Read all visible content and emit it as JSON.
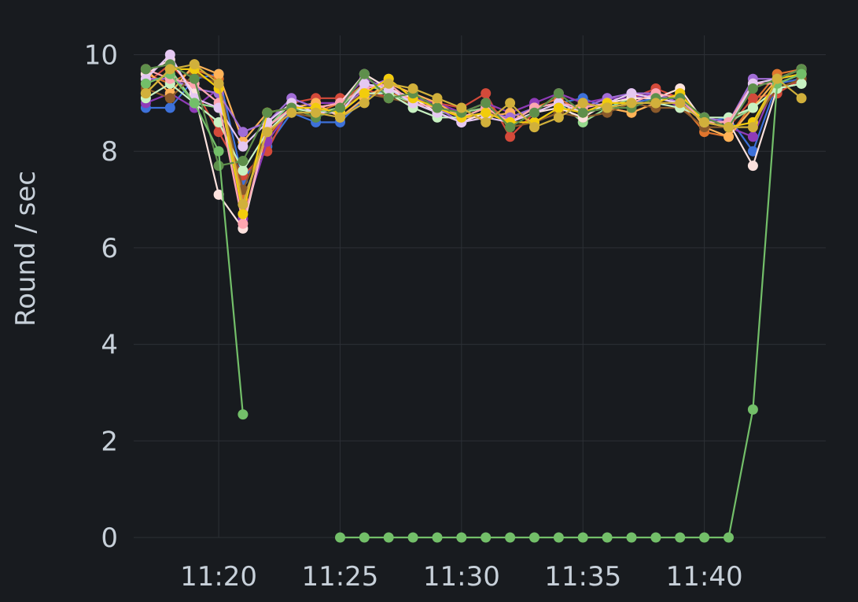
{
  "chart_data": {
    "type": "line",
    "title": "",
    "xlabel": "",
    "ylabel": "Round / sec",
    "ylim": [
      0,
      10.4
    ],
    "xlim": [
      "11:16:30",
      "11:45:00"
    ],
    "y_ticks": [
      "0",
      "2",
      "4",
      "6",
      "8",
      "10"
    ],
    "x_ticks": [
      "11:20",
      "11:25",
      "11:30",
      "11:35",
      "11:40"
    ],
    "grid": true,
    "legend": "none",
    "x": [
      "11:17",
      "11:18",
      "11:19",
      "11:20",
      "11:21",
      "11:22",
      "11:23",
      "11:24",
      "11:25",
      "11:26",
      "11:27",
      "11:28",
      "11:29",
      "11:30",
      "11:31",
      "11:32",
      "11:33",
      "11:34",
      "11:35",
      "11:36",
      "11:37",
      "11:38",
      "11:39",
      "11:40",
      "11:41",
      "11:42",
      "11:43",
      "11:44"
    ],
    "series": [
      {
        "color": "#3d71d9",
        "values": [
          8.9,
          8.9,
          9.5,
          9.6,
          7.4,
          8.1,
          8.8,
          8.6,
          8.6,
          9.1,
          9.3,
          9.0,
          8.9,
          8.7,
          8.8,
          8.7,
          8.9,
          9.0,
          9.1,
          8.9,
          9.0,
          9.1,
          9.0,
          8.6,
          8.7,
          8.0,
          9.4,
          9.5
        ]
      },
      {
        "color": "#e0752d",
        "values": [
          9.6,
          9.4,
          9.7,
          9.5,
          7.0,
          8.3,
          8.9,
          8.8,
          9.0,
          9.4,
          9.2,
          9.1,
          8.9,
          8.8,
          9.0,
          8.6,
          8.9,
          9.1,
          8.8,
          8.9,
          8.8,
          9.0,
          9.0,
          8.4,
          8.3,
          9.0,
          9.6,
          9.7
        ]
      },
      {
        "color": "#d44a3a",
        "values": [
          9.4,
          9.8,
          9.3,
          8.4,
          7.5,
          8.0,
          9.0,
          9.1,
          9.1,
          9.3,
          9.1,
          9.2,
          9.0,
          8.9,
          9.2,
          8.3,
          8.8,
          9.2,
          9.0,
          8.9,
          9.1,
          9.3,
          9.1,
          8.6,
          8.5,
          9.1,
          9.2,
          9.5
        ]
      },
      {
        "color": "#8f3bb8",
        "values": [
          9.0,
          9.2,
          8.9,
          9.3,
          6.6,
          8.2,
          8.9,
          9.0,
          9.0,
          9.5,
          9.3,
          9.1,
          9.0,
          8.8,
          9.0,
          8.8,
          9.0,
          9.2,
          9.0,
          9.1,
          9.1,
          9.2,
          8.9,
          8.7,
          8.5,
          8.3,
          9.5,
          9.6
        ]
      },
      {
        "color": "#96d98d",
        "values": [
          9.2,
          9.7,
          9.0,
          8.9,
          6.9,
          8.5,
          9.0,
          8.8,
          8.9,
          9.4,
          9.2,
          9.0,
          8.8,
          8.8,
          8.9,
          8.6,
          8.9,
          9.0,
          8.6,
          8.9,
          9.1,
          9.1,
          9.0,
          8.6,
          8.6,
          8.9,
          9.3,
          9.4
        ]
      },
      {
        "color": "#ffb357",
        "values": [
          9.7,
          9.2,
          9.8,
          9.6,
          8.2,
          8.8,
          8.9,
          9.0,
          8.7,
          9.1,
          9.4,
          9.2,
          9.0,
          8.7,
          8.7,
          8.8,
          8.6,
          8.8,
          9.0,
          8.9,
          8.8,
          9.0,
          9.2,
          8.5,
          8.3,
          8.9,
          9.5,
          9.7
        ]
      },
      {
        "color": "#a16dd6",
        "values": [
          9.5,
          9.5,
          9.3,
          9.2,
          8.4,
          8.6,
          9.1,
          8.9,
          8.8,
          9.3,
          9.5,
          9.1,
          8.9,
          8.6,
          8.8,
          8.7,
          8.9,
          9.0,
          8.9,
          9.1,
          9.2,
          9.2,
          9.0,
          8.7,
          8.6,
          9.5,
          9.5,
          9.6
        ]
      },
      {
        "color": "#8b5a2b",
        "values": [
          9.3,
          9.1,
          9.6,
          9.4,
          7.2,
          8.4,
          8.8,
          8.7,
          8.9,
          9.2,
          9.1,
          9.0,
          8.9,
          8.7,
          8.9,
          8.5,
          8.6,
          8.8,
          8.7,
          8.8,
          9.0,
          8.9,
          8.9,
          8.5,
          8.5,
          8.6,
          9.3,
          9.5
        ]
      },
      {
        "color": "#fce2de",
        "values": [
          9.6,
          9.9,
          9.2,
          7.1,
          6.4,
          8.5,
          8.9,
          8.9,
          9.0,
          9.6,
          9.3,
          9.1,
          8.8,
          8.6,
          8.8,
          8.6,
          8.8,
          8.9,
          8.7,
          9.0,
          9.1,
          9.1,
          9.3,
          8.6,
          8.6,
          7.7,
          9.3,
          9.4
        ]
      },
      {
        "color": "#c8f2c2",
        "values": [
          9.1,
          9.4,
          9.0,
          8.6,
          7.6,
          8.4,
          8.9,
          8.8,
          8.8,
          9.2,
          9.2,
          8.9,
          8.7,
          8.7,
          8.9,
          8.6,
          8.9,
          9.0,
          8.8,
          8.9,
          9.0,
          9.0,
          8.9,
          8.7,
          8.7,
          8.9,
          9.3,
          9.4
        ]
      },
      {
        "color": "#ffa6b0",
        "values": [
          9.7,
          9.5,
          9.4,
          9.0,
          6.5,
          8.5,
          8.9,
          8.9,
          9.0,
          9.3,
          9.4,
          9.0,
          8.9,
          8.7,
          8.9,
          8.6,
          8.9,
          9.0,
          8.9,
          9.0,
          9.0,
          9.2,
          9.1,
          8.6,
          8.6,
          9.4,
          9.4,
          9.6
        ]
      },
      {
        "color": "#e5c8f2",
        "values": [
          9.5,
          10.0,
          9.1,
          8.9,
          8.1,
          8.6,
          9.0,
          8.8,
          8.8,
          9.4,
          9.3,
          9.0,
          8.8,
          8.6,
          8.7,
          8.6,
          8.8,
          9.0,
          8.8,
          9.0,
          9.2,
          9.1,
          9.0,
          8.6,
          8.5,
          9.4,
          9.5,
          9.7
        ]
      },
      {
        "color": "#f2cc0c",
        "values": [
          9.2,
          9.7,
          9.7,
          9.3,
          6.7,
          8.8,
          8.9,
          8.9,
          8.8,
          9.2,
          9.5,
          9.1,
          8.9,
          8.7,
          8.8,
          8.6,
          8.6,
          8.9,
          8.8,
          9.0,
          9.0,
          9.0,
          9.2,
          8.6,
          8.5,
          8.6,
          9.5,
          9.6
        ]
      },
      {
        "color": "#5e8f4b",
        "values": [
          9.7,
          9.8,
          9.5,
          7.7,
          7.8,
          8.8,
          8.9,
          8.7,
          8.9,
          9.6,
          9.1,
          9.2,
          8.9,
          8.8,
          9.0,
          8.5,
          8.8,
          9.2,
          8.8,
          8.9,
          8.9,
          9.1,
          9.1,
          8.7,
          8.5,
          9.3,
          9.5,
          9.7
        ]
      },
      {
        "color": "#73bf69",
        "values": [
          9.4,
          9.6,
          9.0,
          8.0,
          2.55,
          null,
          null,
          null,
          0,
          0,
          0,
          0,
          0,
          0,
          0,
          0,
          0,
          0,
          0,
          0,
          0,
          0,
          0,
          0,
          0,
          2.65,
          9.4,
          9.6
        ]
      },
      {
        "color": "#d1b03b",
        "values": [
          9.2,
          9.7,
          9.8,
          9.4,
          6.9,
          8.4,
          8.8,
          8.8,
          8.7,
          9.0,
          9.4,
          9.3,
          9.1,
          8.9,
          8.6,
          9.0,
          8.5,
          8.7,
          9.0,
          8.9,
          9.0,
          9.0,
          9.0,
          8.6,
          8.5,
          8.5,
          9.5,
          9.1
        ]
      }
    ]
  }
}
